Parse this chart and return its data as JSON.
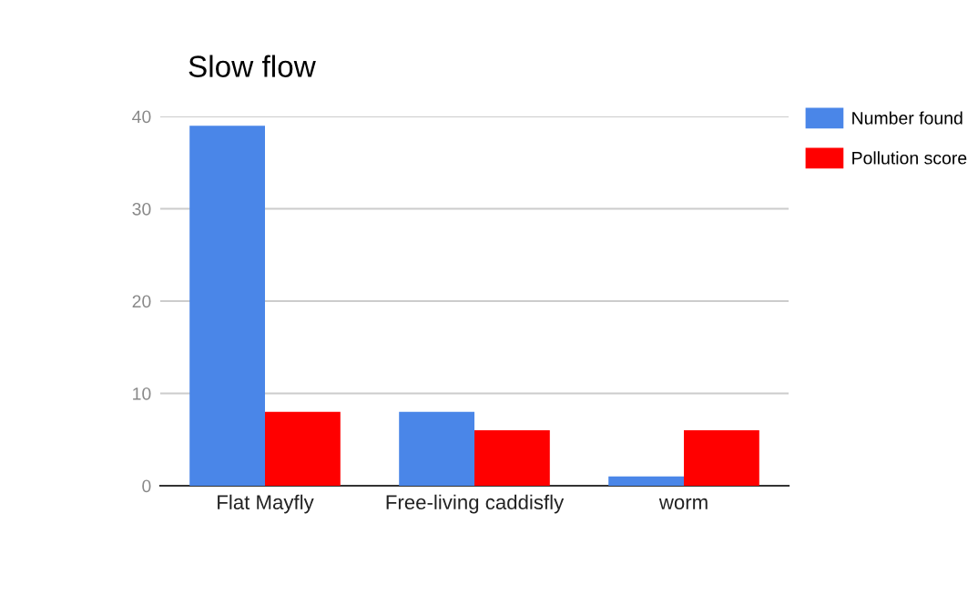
{
  "chart_data": {
    "type": "bar",
    "title": "Slow flow",
    "categories": [
      "Flat Mayfly",
      "Free-living caddisfly",
      "worm"
    ],
    "series": [
      {
        "name": "Number found",
        "color": "#4a86e8",
        "values": [
          39,
          8,
          1
        ]
      },
      {
        "name": "Pollution score",
        "color": "#ff0000",
        "values": [
          8,
          6,
          6
        ]
      }
    ],
    "ylim": [
      0,
      40
    ],
    "yticks": [
      0,
      10,
      20,
      30,
      40
    ],
    "grid": "y",
    "legend": "top right"
  }
}
